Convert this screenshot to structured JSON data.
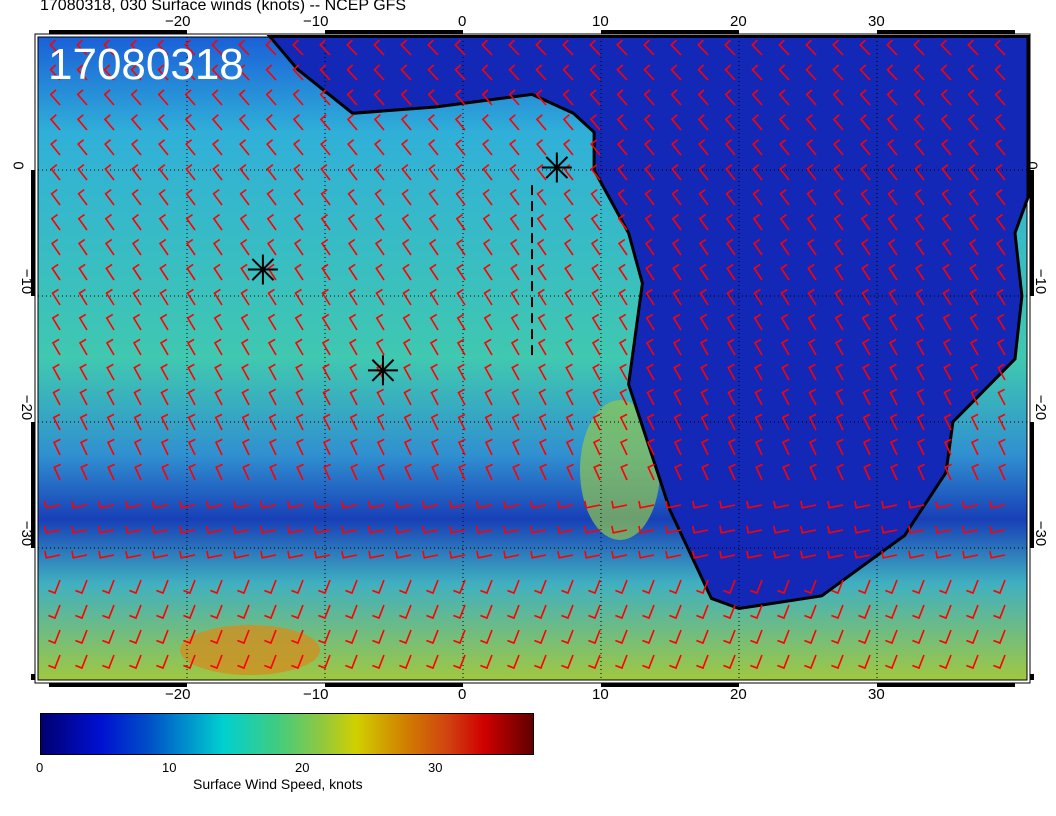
{
  "title": "17080318, 030 Surface winds (knots) -- NCEP GFS",
  "date_label": "17080318",
  "lon_ticks": [
    "−20",
    "−10",
    "0",
    "10",
    "20",
    "30"
  ],
  "lon_values": [
    -20,
    -10,
    0,
    10,
    20,
    30
  ],
  "lat_ticks": [
    "0",
    "−10",
    "−20",
    "−30"
  ],
  "lat_values": [
    0,
    -10,
    -20,
    -30
  ],
  "colorbar": {
    "label": "Surface Wind Speed, knots",
    "ticks": [
      "0",
      "10",
      "20",
      "30"
    ],
    "range": [
      0,
      37
    ],
    "colors": [
      "#000070",
      "#0010d0",
      "#00d0d0",
      "#d0d000",
      "#d00000",
      "#600000"
    ]
  },
  "map": {
    "lon_range": [
      -31,
      41
    ],
    "lat_range": [
      -40.5,
      10.6
    ],
    "barb_color": "#ff0000",
    "land_outline": "#000000",
    "markers": [
      {
        "lon": -14.5,
        "lat": -7.9
      },
      {
        "lon": -5.8,
        "lat": -15.9
      },
      {
        "lon": 6.8,
        "lat": 0.2
      }
    ]
  }
}
